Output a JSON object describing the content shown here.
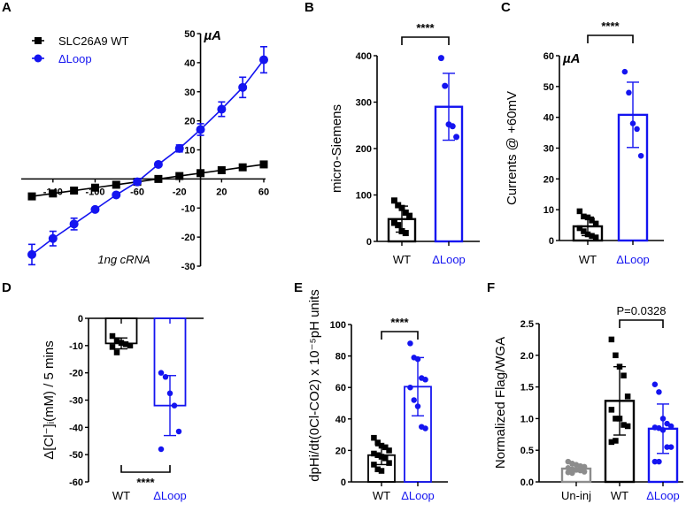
{
  "colors": {
    "wt": "#000000",
    "loop": "#1414f0",
    "uninj": "#8c8c8c"
  },
  "chart_data": [
    {
      "panel": "A",
      "type": "line",
      "title": "",
      "xlabel": "",
      "ylabel": "",
      "unit_label": "µA",
      "annotation": "1ng cRNA",
      "xlim": [
        -160,
        60
      ],
      "ylim": [
        -30,
        50
      ],
      "x_ticks": [
        -140,
        -100,
        -60,
        -20,
        20,
        60
      ],
      "y_ticks": [
        50,
        40,
        30,
        20,
        10,
        -10,
        -20,
        -30
      ],
      "x": [
        -160,
        -140,
        -120,
        -100,
        -80,
        -60,
        -40,
        -20,
        0,
        20,
        40,
        60
      ],
      "legend": "top-left",
      "series": [
        {
          "name": "SLC26A9 WT",
          "color_key": "wt",
          "marker": "square",
          "values": [
            -6,
            -5,
            -4,
            -3,
            -2,
            -1,
            0,
            1,
            2,
            3,
            4,
            5
          ],
          "errors": [
            0,
            0,
            0,
            0,
            0,
            0,
            0,
            0,
            0,
            0,
            0,
            0
          ]
        },
        {
          "name": "ΔLoop",
          "color_key": "loop",
          "marker": "circle",
          "values": [
            -26,
            -20.5,
            -15.5,
            -10.5,
            -5.5,
            -1,
            5,
            10.5,
            17,
            24,
            31.5,
            41
          ],
          "errors": [
            3.5,
            2.5,
            2,
            0,
            0,
            0,
            0,
            1.2,
            2,
            2.5,
            3.5,
            4.5
          ]
        }
      ]
    },
    {
      "panel": "B",
      "type": "bar",
      "ylabel": "micro-Siemens",
      "ylim": [
        0,
        400
      ],
      "y_ticks": [
        0,
        100,
        200,
        300,
        400
      ],
      "categories": [
        "WT",
        "ΔLoop"
      ],
      "significance": "****",
      "groups": [
        {
          "name": "WT",
          "color_key": "wt",
          "marker": "square",
          "mean": 48,
          "sd": 28,
          "points": [
            88,
            78,
            72,
            62,
            55,
            40,
            35,
            22,
            18
          ]
        },
        {
          "name": "ΔLoop",
          "color_key": "loop",
          "marker": "circle",
          "mean": 290,
          "sd": 72,
          "points": [
            395,
            335,
            252,
            248,
            225
          ]
        }
      ]
    },
    {
      "panel": "C",
      "type": "bar",
      "ylabel": "Currents @ +60mV",
      "unit_label": "µA",
      "ylim": [
        0,
        60
      ],
      "y_ticks": [
        0,
        10,
        20,
        30,
        40,
        50,
        60
      ],
      "categories": [
        "WT",
        "ΔLoop"
      ],
      "significance": "****",
      "groups": [
        {
          "name": "WT",
          "color_key": "wt",
          "marker": "square",
          "mean": 4.6,
          "sd": 3,
          "points": [
            9.5,
            7.8,
            7.5,
            6.5,
            5.5,
            4,
            3,
            2,
            1.5,
            1
          ]
        },
        {
          "name": "ΔLoop",
          "color_key": "loop",
          "marker": "circle",
          "mean": 40.8,
          "sd": 10.6,
          "points": [
            54.8,
            48,
            38,
            36.2,
            27.5
          ]
        }
      ]
    },
    {
      "panel": "D",
      "type": "bar",
      "ylabel": "Δ[Cl⁻]ᵢ(mM) / 5 mins",
      "ylim": [
        -60,
        0
      ],
      "y_ticks": [
        0,
        -10,
        -20,
        -30,
        -40,
        -50,
        -60
      ],
      "categories": [
        "WT",
        "ΔLoop"
      ],
      "significance": "****",
      "significance_position": "bottom",
      "groups": [
        {
          "name": "WT",
          "color_key": "wt",
          "marker": "square",
          "mean": -9.2,
          "sd": 2,
          "points": [
            -6.5,
            -8,
            -9,
            -9.5,
            -10,
            -10.5,
            -12.5
          ]
        },
        {
          "name": "ΔLoop",
          "color_key": "loop",
          "marker": "circle",
          "mean": -32,
          "sd": 11,
          "points": [
            -20,
            -21.5,
            -27.5,
            -32,
            -41.5,
            -48
          ]
        }
      ]
    },
    {
      "panel": "E",
      "type": "bar",
      "ylabel": "dpHi/dt(0Cl-CO2) x 10⁻⁵pH units",
      "ylim": [
        0,
        100
      ],
      "y_ticks": [
        0,
        20,
        40,
        60,
        80,
        100
      ],
      "categories": [
        "WT",
        "ΔLoop"
      ],
      "significance": "****",
      "groups": [
        {
          "name": "WT",
          "color_key": "wt",
          "marker": "square",
          "mean": 17,
          "sd": 6,
          "points": [
            28,
            25,
            23,
            22,
            20,
            18,
            17,
            16,
            15,
            12,
            11,
            8,
            7
          ]
        },
        {
          "name": "ΔLoop",
          "color_key": "loop",
          "marker": "circle",
          "mean": 60.5,
          "sd": 18.5,
          "points": [
            88,
            79,
            78,
            66,
            65,
            60,
            52,
            48,
            35,
            34
          ]
        }
      ]
    },
    {
      "panel": "F",
      "type": "bar",
      "ylabel": "Normalized Flag/WGA",
      "ylim": [
        0,
        2.5
      ],
      "y_ticks": [
        0.0,
        0.5,
        1.0,
        1.5,
        2.0,
        2.5
      ],
      "y_tick_labels": [
        "0.0",
        "0.5",
        "1.0",
        "1.5",
        "2.0",
        "2.5"
      ],
      "categories": [
        "Un-inj",
        "WT",
        "ΔLoop"
      ],
      "significance": "P=0.0328",
      "significance_between": [
        "WT",
        "ΔLoop"
      ],
      "groups": [
        {
          "name": "Un-inj",
          "color_key": "uninj",
          "marker": "circle",
          "mean": 0.21,
          "sd": 0.05,
          "points": [
            0.32,
            0.29,
            0.27,
            0.25,
            0.24,
            0.22,
            0.2,
            0.19,
            0.18,
            0.16,
            0.15,
            0.14
          ]
        },
        {
          "name": "WT",
          "color_key": "wt",
          "marker": "square",
          "mean": 1.28,
          "sd": 0.54,
          "points": [
            2.25,
            2.0,
            1.82,
            1.68,
            1.35,
            1.14,
            1.0,
            1.0,
            0.9,
            0.88,
            0.63,
            0.65
          ]
        },
        {
          "name": "ΔLoop",
          "color_key": "loop",
          "marker": "circle",
          "mean": 0.84,
          "sd": 0.39,
          "points": [
            1.54,
            1.42,
            1.0,
            0.92,
            0.88,
            0.86,
            0.85,
            0.82,
            0.55,
            0.55,
            0.32,
            0.32
          ]
        }
      ]
    }
  ]
}
